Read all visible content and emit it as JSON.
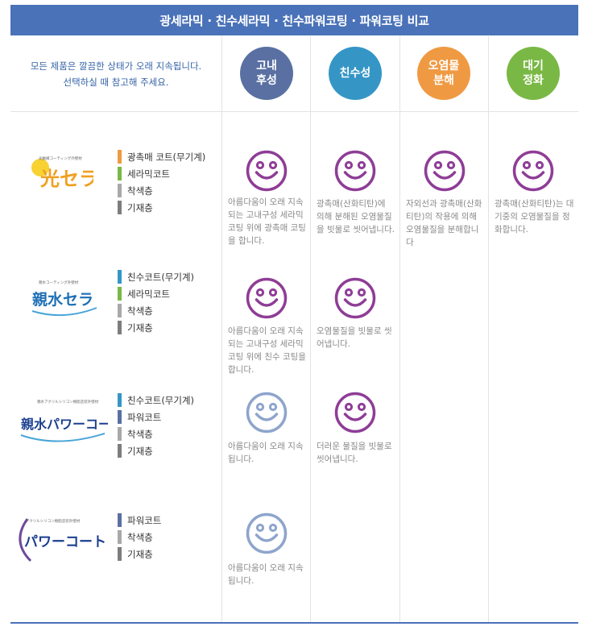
{
  "title": "광세라믹 · 친수세라믹 · 친수파워코팅 · 파워코팅 비교",
  "intro": {
    "line1": "모든 제품은 깔끔한 상태가 오래 지속됩니다.",
    "line2": "선택하실 때 참고해 주세요."
  },
  "columns": [
    {
      "line1": "고내",
      "line2": "후성",
      "color": "#5a70a3"
    },
    {
      "line1": "친수성",
      "line2": "",
      "color": "#3596c6"
    },
    {
      "line1": "오염물",
      "line2": "분해",
      "color": "#ef9a43"
    },
    {
      "line1": "대기",
      "line2": "정화",
      "color": "#7ab845"
    }
  ],
  "products": [
    {
      "logo_text": "光セラ",
      "logo_small": "光触媒コーティング外壁材",
      "layers": [
        {
          "label": "광촉매 코트(무기계)",
          "color": "#ef9a43"
        },
        {
          "label": "세라믹코트",
          "color": "#7ab845"
        },
        {
          "label": "착색층",
          "color": "#a9a9a9"
        },
        {
          "label": "기재층",
          "color": "#7d7d7d"
        }
      ],
      "cells": [
        "아름다움이 오래 지속되는 고내구성 세라믹 코팅 위에 광촉매 코팅을 합니다.",
        "광촉매(산화티탄)에 의해 분해된 오염물질을 빗물로 씻어냅니다.",
        "자외선과 광촉매(산화티탄)의 작용에 의해 오염물질을 분해합니다",
        "광촉매(산화티탄)는 대기중의 오염물질을 정화합니다."
      ]
    },
    {
      "logo_text": "親水セラ",
      "logo_small": "親水コーティング外壁材",
      "layers": [
        {
          "label": "친수코트(무기계)",
          "color": "#3596c6"
        },
        {
          "label": "세라믹코트",
          "color": "#7ab845"
        },
        {
          "label": "착색층",
          "color": "#a9a9a9"
        },
        {
          "label": "기재층",
          "color": "#7d7d7d"
        }
      ],
      "cells": [
        "아름다움이 오래 지속되는 고내구성 세라믹 코팅 위에 친수 코팅을 합니다.",
        "오염물질을 빗물로 씻어냅니다.",
        "",
        ""
      ]
    },
    {
      "logo_text": "親水パワーコート",
      "logo_small": "親水アクリルシリコン樹脂塗装外壁材",
      "layers": [
        {
          "label": "친수코트(무기계)",
          "color": "#3596c6"
        },
        {
          "label": "파워코트",
          "color": "#5a70a3"
        },
        {
          "label": "착색층",
          "color": "#a9a9a9"
        },
        {
          "label": "기재층",
          "color": "#7d7d7d"
        }
      ],
      "cells": [
        "아름다움이 오래 지속됩니다.",
        "더러운 물질을 빗물로 씻어냅니다.",
        "",
        ""
      ]
    },
    {
      "logo_text": "パワーコート",
      "logo_small": "アクリルシリコン樹脂塗装外壁材",
      "layers": [
        {
          "label": "파워코트",
          "color": "#5a70a3"
        },
        {
          "label": "착색층",
          "color": "#a9a9a9"
        },
        {
          "label": "기재층",
          "color": "#7d7d7d"
        }
      ],
      "cells": [
        "아름다움이 오래 지속됩니다.",
        "",
        "",
        ""
      ]
    }
  ],
  "icon_colors": {
    "strong": "#8e3d96",
    "light": "#8ea5cc"
  }
}
